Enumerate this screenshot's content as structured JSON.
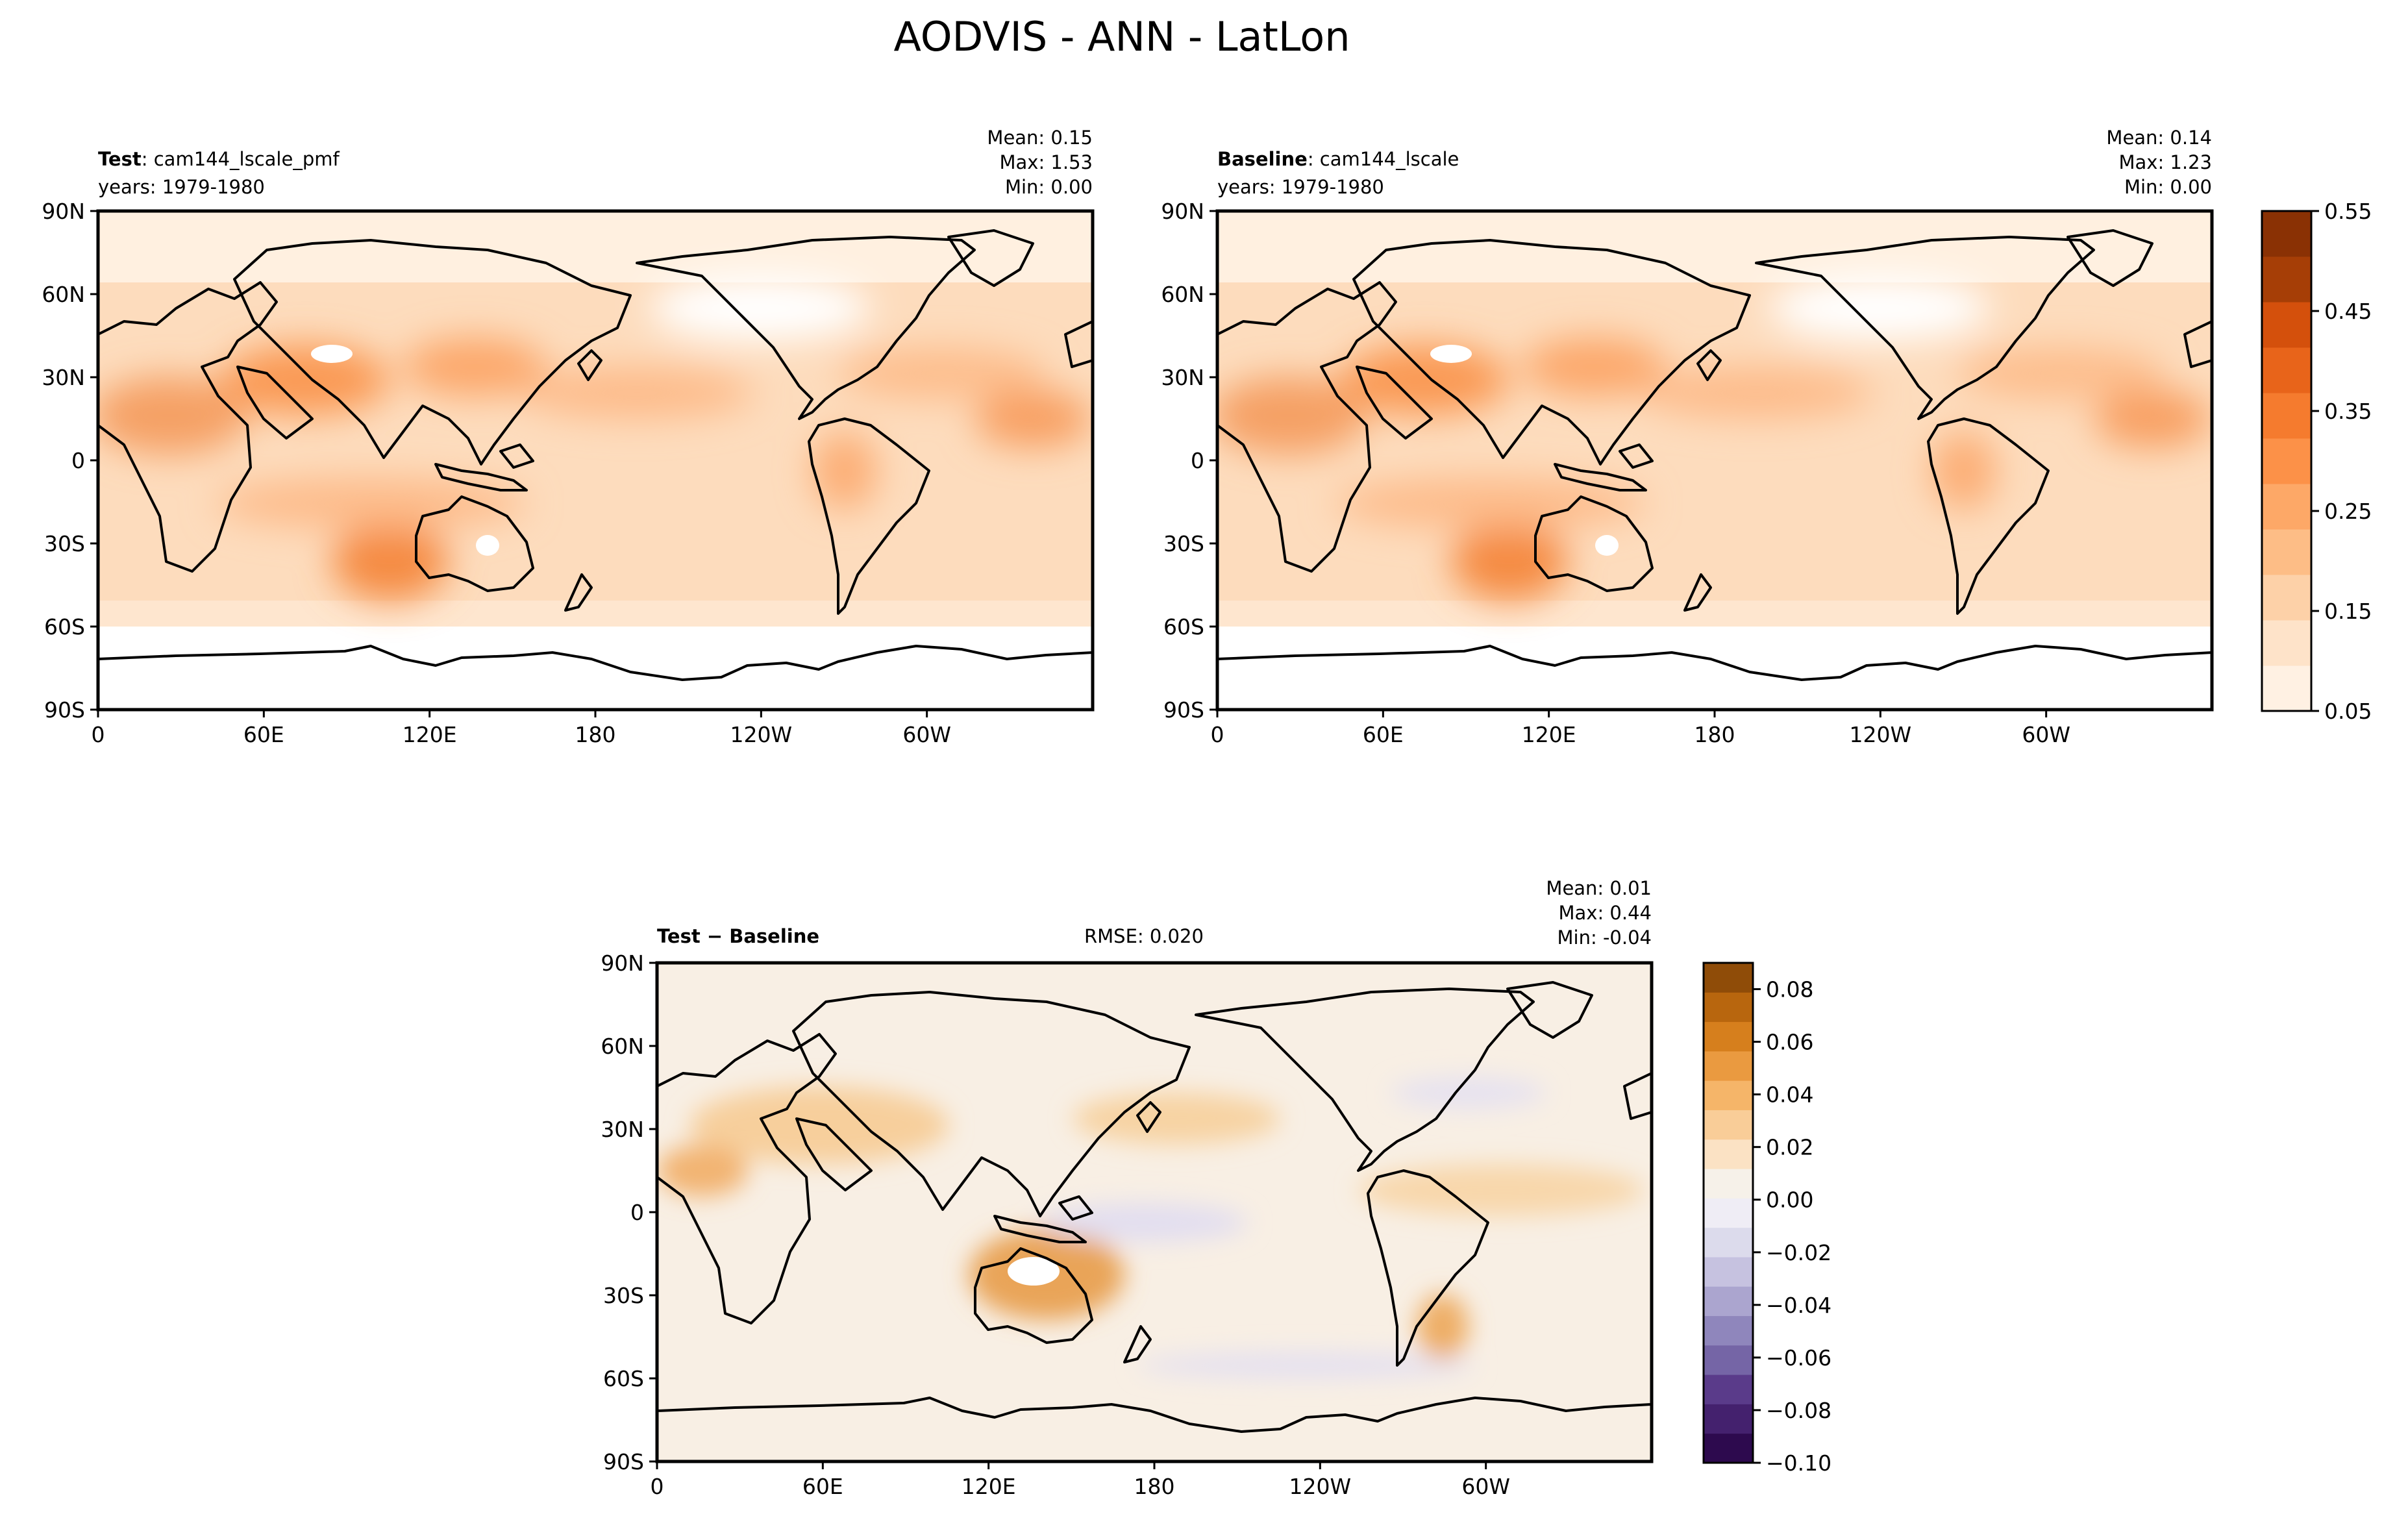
{
  "figure": {
    "title": "AODVIS - ANN - LatLon"
  },
  "chart_data": [
    {
      "type": "heatmap",
      "panel": "test",
      "label_bold": "Test",
      "label_rest": ": cam144_lscale_pmf",
      "years": "years: 1979-1980",
      "stats": {
        "mean": "Mean:  0.15",
        "max": "Max:  1.53",
        "min": "Min:  0.00"
      },
      "x_ticks": [
        "0",
        "60E",
        "120E",
        "180",
        "120W",
        "60W"
      ],
      "y_ticks": [
        "90N",
        "60N",
        "30N",
        "0",
        "30S",
        "60S",
        "90S"
      ],
      "xlim": [
        0,
        360
      ],
      "ylim": [
        -90,
        90
      ],
      "colormap": "Oranges",
      "colorbar": {
        "ticks": [
          "0.55",
          "0.45",
          "0.35",
          "0.25",
          "0.15",
          "0.05"
        ],
        "range": [
          0.05,
          0.55
        ]
      }
    },
    {
      "type": "heatmap",
      "panel": "baseline",
      "label_bold": "Baseline",
      "label_rest": ": cam144_lscale",
      "years": "years: 1979-1980",
      "stats": {
        "mean": "Mean:  0.14",
        "max": "Max:  1.23",
        "min": "Min:  0.00"
      },
      "x_ticks": [
        "0",
        "60E",
        "120E",
        "180",
        "120W",
        "60W"
      ],
      "y_ticks": [
        "90N",
        "60N",
        "30N",
        "0",
        "30S",
        "60S",
        "90S"
      ],
      "xlim": [
        0,
        360
      ],
      "ylim": [
        -90,
        90
      ],
      "colormap": "Oranges"
    },
    {
      "type": "heatmap",
      "panel": "difference",
      "label_bold": "Test − Baseline",
      "rmse": "RMSE: 0.020",
      "stats": {
        "mean": "Mean:  0.01",
        "max": "Max:  0.44",
        "min": "Min: -0.04"
      },
      "x_ticks": [
        "0",
        "60E",
        "120E",
        "180",
        "120W",
        "60W"
      ],
      "y_ticks": [
        "90N",
        "60N",
        "30N",
        "0",
        "30S",
        "60S",
        "90S"
      ],
      "xlim": [
        0,
        360
      ],
      "ylim": [
        -90,
        90
      ],
      "colormap": "PuOr_r",
      "colorbar": {
        "ticks": [
          "0.08",
          "0.06",
          "0.04",
          "0.02",
          "0.00",
          "−0.02",
          "−0.04",
          "−0.06",
          "−0.08",
          "−0.10"
        ],
        "range": [
          -0.1,
          0.09
        ]
      }
    }
  ]
}
